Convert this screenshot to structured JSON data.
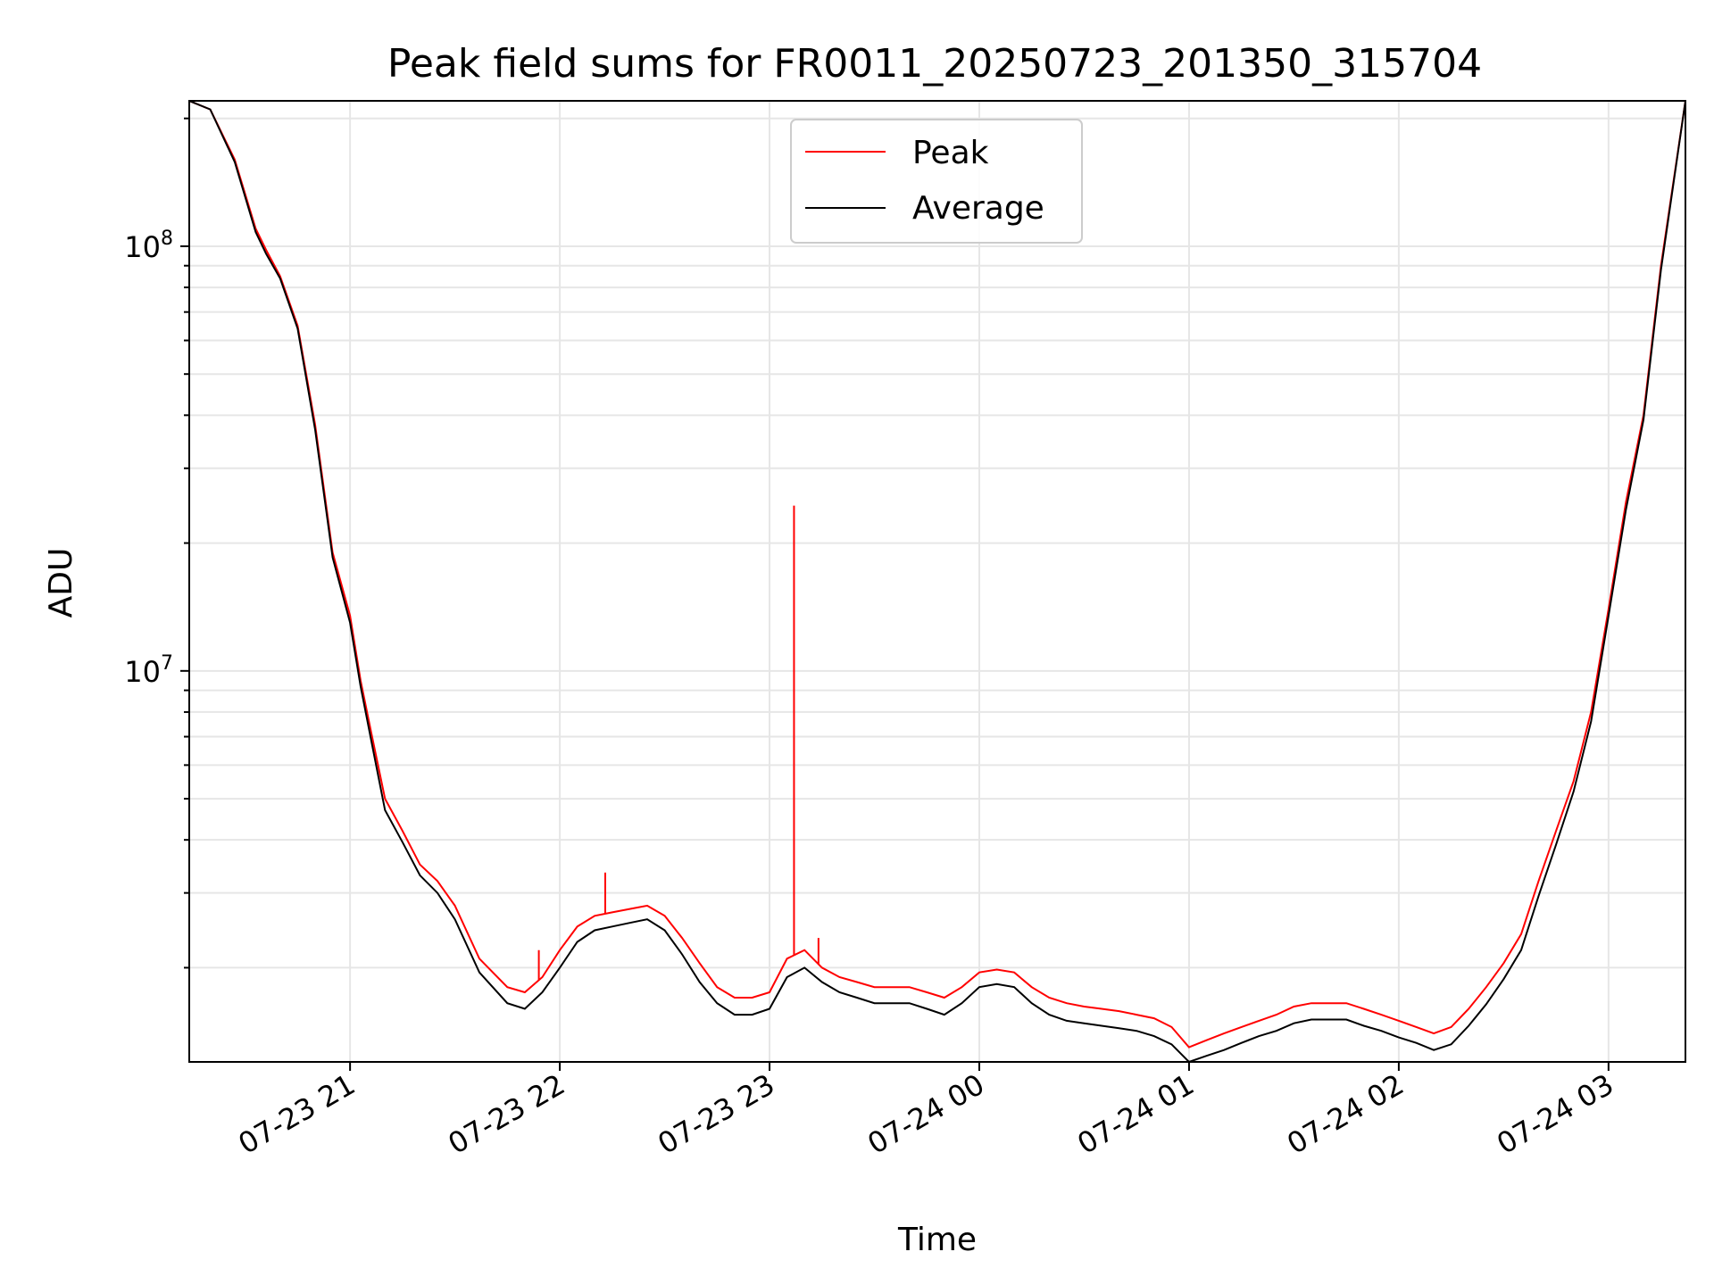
{
  "chart_data": {
    "type": "line",
    "title": "Peak field sums for FR0011_20250723_201350_315704",
    "xlabel": "Time",
    "ylabel": "ADU",
    "yscale": "log",
    "ylim": [
      1200000,
      220000000
    ],
    "xlim": [
      "2025-07-23 20:14",
      "2025-07-24 03:22"
    ],
    "grid": true,
    "legend_position": "top-center",
    "x_ticks": [
      "2025-07-23 21:00",
      "2025-07-23 22:00",
      "2025-07-23 23:00",
      "2025-07-24 00:00",
      "2025-07-24 01:00",
      "2025-07-24 02:00",
      "2025-07-24 03:00"
    ],
    "x_tick_labels": [
      "07-23 21",
      "07-23 22",
      "07-23 23",
      "07-24 00",
      "07-24 01",
      "07-24 02",
      "07-24 03"
    ],
    "y_ticks": [
      10000000,
      100000000
    ],
    "y_tick_labels": [
      {
        "base": "10",
        "exp": "7"
      },
      {
        "base": "10",
        "exp": "8"
      }
    ],
    "series": [
      {
        "name": "Peak",
        "color": "#ff0000",
        "x": [
          "2025-07-23 20:14",
          "2025-07-23 20:20",
          "2025-07-23 20:27",
          "2025-07-23 20:33",
          "2025-07-23 20:36",
          "2025-07-23 20:40",
          "2025-07-23 20:45",
          "2025-07-23 20:50",
          "2025-07-23 20:55",
          "2025-07-23 21:00",
          "2025-07-23 21:03",
          "2025-07-23 21:06",
          "2025-07-23 21:10",
          "2025-07-23 21:15",
          "2025-07-23 21:20",
          "2025-07-23 21:25",
          "2025-07-23 21:30",
          "2025-07-23 21:37",
          "2025-07-23 21:45",
          "2025-07-23 21:50",
          "2025-07-23 21:55",
          "2025-07-23 22:00",
          "2025-07-23 22:05",
          "2025-07-23 22:10",
          "2025-07-23 22:15",
          "2025-07-23 22:20",
          "2025-07-23 22:25",
          "2025-07-23 22:30",
          "2025-07-23 22:35",
          "2025-07-23 22:40",
          "2025-07-23 22:45",
          "2025-07-23 22:50",
          "2025-07-23 22:55",
          "2025-07-23 23:00",
          "2025-07-23 23:05",
          "2025-07-23 23:10",
          "2025-07-23 23:15",
          "2025-07-23 23:20",
          "2025-07-23 23:25",
          "2025-07-23 23:30",
          "2025-07-23 23:35",
          "2025-07-23 23:40",
          "2025-07-23 23:45",
          "2025-07-23 23:50",
          "2025-07-23 23:55",
          "2025-07-24 00:00",
          "2025-07-24 00:05",
          "2025-07-24 00:10",
          "2025-07-24 00:15",
          "2025-07-24 00:20",
          "2025-07-24 00:25",
          "2025-07-24 00:30",
          "2025-07-24 00:35",
          "2025-07-24 00:40",
          "2025-07-24 00:45",
          "2025-07-24 00:50",
          "2025-07-24 00:55",
          "2025-07-24 01:00",
          "2025-07-24 01:05",
          "2025-07-24 01:10",
          "2025-07-24 01:15",
          "2025-07-24 01:20",
          "2025-07-24 01:25",
          "2025-07-24 01:30",
          "2025-07-24 01:35",
          "2025-07-24 01:40",
          "2025-07-24 01:45",
          "2025-07-24 01:50",
          "2025-07-24 01:55",
          "2025-07-24 02:00",
          "2025-07-24 02:05",
          "2025-07-24 02:10",
          "2025-07-24 02:15",
          "2025-07-24 02:20",
          "2025-07-24 02:25",
          "2025-07-24 02:30",
          "2025-07-24 02:35",
          "2025-07-24 02:40",
          "2025-07-24 02:45",
          "2025-07-24 02:50",
          "2025-07-24 02:55",
          "2025-07-24 03:00",
          "2025-07-24 03:05",
          "2025-07-24 03:10",
          "2025-07-24 03:15",
          "2025-07-24 03:22"
        ],
        "y": [
          220000000,
          210000000,
          160000000,
          110000000,
          98000000,
          85000000,
          65000000,
          38000000,
          19000000,
          13500000,
          9500000,
          7200000,
          5000000,
          4200000,
          3500000,
          3200000,
          2800000,
          2100000,
          1800000,
          1750000,
          1900000,
          2200000,
          2500000,
          2650000,
          2700000,
          2750000,
          2800000,
          2650000,
          2350000,
          2050000,
          1800000,
          1700000,
          1700000,
          1750000,
          2100000,
          2200000,
          2000000,
          1900000,
          1850000,
          1800000,
          1800000,
          1800000,
          1750000,
          1700000,
          1800000,
          1950000,
          1980000,
          1950000,
          1800000,
          1700000,
          1650000,
          1620000,
          1600000,
          1580000,
          1550000,
          1520000,
          1450000,
          1300000,
          1350000,
          1400000,
          1450000,
          1500000,
          1550000,
          1620000,
          1650000,
          1650000,
          1650000,
          1600000,
          1550000,
          1500000,
          1450000,
          1400000,
          1450000,
          1600000,
          1800000,
          2050000,
          2400000,
          3200000,
          4200000,
          5500000,
          8000000,
          14000000,
          25000000,
          40000000,
          90000000,
          220000000
        ]
      },
      {
        "name": "Average",
        "color": "#000000",
        "x": [
          "2025-07-23 20:14",
          "2025-07-23 20:20",
          "2025-07-23 20:27",
          "2025-07-23 20:33",
          "2025-07-23 20:36",
          "2025-07-23 20:40",
          "2025-07-23 20:45",
          "2025-07-23 20:50",
          "2025-07-23 20:55",
          "2025-07-23 21:00",
          "2025-07-23 21:03",
          "2025-07-23 21:06",
          "2025-07-23 21:10",
          "2025-07-23 21:15",
          "2025-07-23 21:20",
          "2025-07-23 21:25",
          "2025-07-23 21:30",
          "2025-07-23 21:37",
          "2025-07-23 21:45",
          "2025-07-23 21:50",
          "2025-07-23 21:55",
          "2025-07-23 22:00",
          "2025-07-23 22:05",
          "2025-07-23 22:10",
          "2025-07-23 22:15",
          "2025-07-23 22:20",
          "2025-07-23 22:25",
          "2025-07-23 22:30",
          "2025-07-23 22:35",
          "2025-07-23 22:40",
          "2025-07-23 22:45",
          "2025-07-23 22:50",
          "2025-07-23 22:55",
          "2025-07-23 23:00",
          "2025-07-23 23:05",
          "2025-07-23 23:10",
          "2025-07-23 23:15",
          "2025-07-23 23:20",
          "2025-07-23 23:25",
          "2025-07-23 23:30",
          "2025-07-23 23:35",
          "2025-07-23 23:40",
          "2025-07-23 23:45",
          "2025-07-23 23:50",
          "2025-07-23 23:55",
          "2025-07-24 00:00",
          "2025-07-24 00:05",
          "2025-07-24 00:10",
          "2025-07-24 00:15",
          "2025-07-24 00:20",
          "2025-07-24 00:25",
          "2025-07-24 00:30",
          "2025-07-24 00:35",
          "2025-07-24 00:40",
          "2025-07-24 00:45",
          "2025-07-24 00:50",
          "2025-07-24 00:55",
          "2025-07-24 01:00",
          "2025-07-24 01:05",
          "2025-07-24 01:10",
          "2025-07-24 01:15",
          "2025-07-24 01:20",
          "2025-07-24 01:25",
          "2025-07-24 01:30",
          "2025-07-24 01:35",
          "2025-07-24 01:40",
          "2025-07-24 01:45",
          "2025-07-24 01:50",
          "2025-07-24 01:55",
          "2025-07-24 02:00",
          "2025-07-24 02:05",
          "2025-07-24 02:10",
          "2025-07-24 02:15",
          "2025-07-24 02:20",
          "2025-07-24 02:25",
          "2025-07-24 02:30",
          "2025-07-24 02:35",
          "2025-07-24 02:40",
          "2025-07-24 02:45",
          "2025-07-24 02:50",
          "2025-07-24 02:55",
          "2025-07-24 03:00",
          "2025-07-24 03:05",
          "2025-07-24 03:10",
          "2025-07-24 03:15",
          "2025-07-24 03:22"
        ],
        "y": [
          220000000,
          210000000,
          158000000,
          108000000,
          96000000,
          84000000,
          64000000,
          37000000,
          18500000,
          13000000,
          9200000,
          6900000,
          4700000,
          3950000,
          3300000,
          3000000,
          2600000,
          1950000,
          1650000,
          1600000,
          1750000,
          2000000,
          2300000,
          2450000,
          2500000,
          2550000,
          2600000,
          2450000,
          2150000,
          1850000,
          1650000,
          1550000,
          1550000,
          1600000,
          1900000,
          2000000,
          1850000,
          1750000,
          1700000,
          1650000,
          1650000,
          1650000,
          1600000,
          1550000,
          1650000,
          1800000,
          1830000,
          1800000,
          1650000,
          1550000,
          1500000,
          1480000,
          1460000,
          1440000,
          1420000,
          1380000,
          1320000,
          1200000,
          1240000,
          1280000,
          1330000,
          1380000,
          1420000,
          1480000,
          1510000,
          1510000,
          1510000,
          1460000,
          1420000,
          1370000,
          1330000,
          1280000,
          1320000,
          1460000,
          1640000,
          1880000,
          2200000,
          2950000,
          3900000,
          5200000,
          7600000,
          13500000,
          24000000,
          39000000,
          88000000,
          220000000
        ]
      }
    ],
    "spikes": [
      {
        "series": "Peak",
        "x": "2025-07-23 21:54",
        "y": 2200000
      },
      {
        "series": "Peak",
        "x": "2025-07-23 22:13",
        "y": 3350000
      },
      {
        "series": "Peak",
        "x": "2025-07-23 23:07",
        "y": 24500000
      },
      {
        "series": "Peak",
        "x": "2025-07-23 23:14",
        "y": 2350000
      }
    ]
  },
  "colors": {
    "peak": "#ff0000",
    "average": "#000000",
    "grid": "#e6e6e6",
    "axes": "#000000"
  }
}
